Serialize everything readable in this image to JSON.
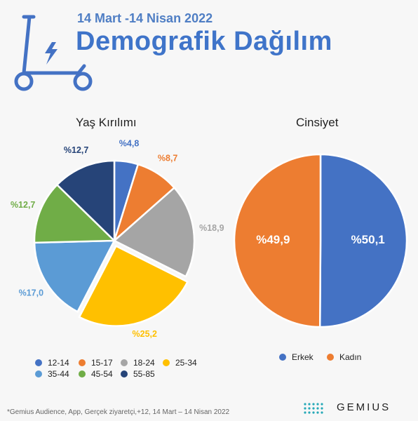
{
  "header": {
    "date_range": "14 Mart -14 Nisan 2022",
    "title": "Demografik Dağılım"
  },
  "chart_data": [
    {
      "type": "pie",
      "title": "Yaş Kırılımı",
      "labels": [
        "12-14",
        "15-17",
        "18-24",
        "25-34",
        "35-44",
        "45-54",
        "55-85"
      ],
      "values": [
        4.8,
        8.7,
        18.9,
        25.2,
        17.0,
        12.7,
        12.7
      ],
      "value_labels": [
        "%4,8",
        "%8,7",
        "%18,9",
        "%25,2",
        "%17,0",
        "%12,7",
        "%12,7"
      ],
      "colors": [
        "#4472c4",
        "#ed7d31",
        "#a5a5a5",
        "#ffc000",
        "#5b9bd5",
        "#70ad47",
        "#264478"
      ],
      "exploded": "25-34",
      "legend_position": "bottom"
    },
    {
      "type": "pie",
      "title": "Cinsiyet",
      "labels": [
        "Erkek",
        "Kadın"
      ],
      "values": [
        50.1,
        49.9
      ],
      "value_labels": [
        "%50,1",
        "%49,9"
      ],
      "colors": [
        "#4472c4",
        "#ed7d31"
      ],
      "legend_position": "bottom"
    }
  ],
  "footnote": "*Gemius Audience, App, Gerçek ziyaretçi,+12, 14 Mart – 14 Nisan 2022",
  "brand": "GEMIUS",
  "icons": {
    "header": "electric-scooter-icon",
    "brand": "gemius-logo-dots"
  }
}
